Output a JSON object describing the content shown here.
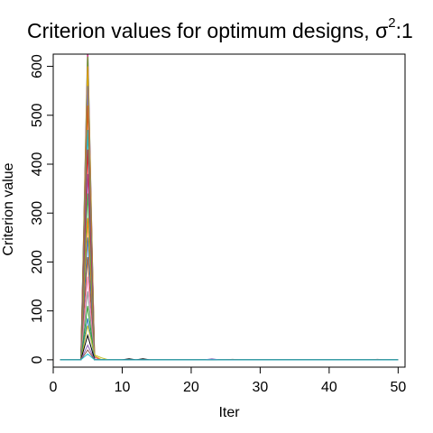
{
  "chart_data": {
    "type": "line",
    "title": "Criterion values for optimum designs, ",
    "title_sigma": "σ",
    "title_superscript": "2",
    "title_suffix": ":1",
    "xlabel": "Iter",
    "ylabel": "Criterion value",
    "xlim": [
      0,
      51
    ],
    "ylim": [
      -15,
      625
    ],
    "xticks": [
      0,
      10,
      20,
      30,
      40,
      50
    ],
    "yticks": [
      0,
      100,
      200,
      300,
      400,
      500,
      600
    ],
    "grid": false,
    "x": [
      1,
      2,
      3,
      4,
      5,
      6,
      7,
      8,
      9,
      10,
      11,
      12,
      13,
      14,
      15,
      16,
      17,
      18,
      19,
      20,
      21,
      22,
      23,
      24,
      25,
      26,
      27,
      28,
      29,
      30,
      31,
      32,
      33,
      34,
      35,
      36,
      37,
      38,
      39,
      40,
      41,
      42,
      43,
      44,
      45,
      46,
      47,
      48,
      49,
      50
    ],
    "series": [
      {
        "color": "#1b9e77",
        "values": [
          0,
          0,
          0,
          0,
          650,
          0,
          0,
          0,
          0,
          0,
          0,
          0,
          0,
          0,
          0,
          0,
          0,
          0,
          0,
          0,
          0,
          0,
          0,
          0,
          0,
          0,
          0,
          0,
          0,
          0,
          0,
          0,
          0,
          0,
          0,
          0,
          0,
          0,
          0,
          0,
          0,
          0,
          0,
          0,
          0,
          0,
          0,
          0,
          0,
          0
        ]
      },
      {
        "color": "#e7298a",
        "values": [
          0,
          0,
          0,
          0,
          640,
          5,
          0,
          0,
          0,
          0,
          0,
          0,
          0,
          0,
          0,
          0,
          0,
          0,
          0,
          0,
          0,
          0,
          0,
          0,
          0,
          0,
          0,
          0,
          0,
          0,
          0,
          0,
          0,
          0,
          0,
          0,
          0,
          0,
          0,
          0,
          0,
          0,
          0,
          0,
          0,
          0,
          0,
          0,
          0,
          0
        ]
      },
      {
        "color": "#66a61e",
        "values": [
          0,
          0,
          0,
          0,
          620,
          0,
          0,
          0,
          0,
          0,
          0,
          0,
          0,
          0,
          0,
          0,
          0,
          0,
          0,
          0,
          0,
          0,
          0,
          0,
          0,
          0,
          0,
          0,
          0,
          0,
          0,
          0,
          0,
          0,
          0,
          0,
          0,
          0,
          0,
          0,
          0,
          0,
          0,
          0,
          0,
          0,
          0,
          0,
          0,
          0
        ]
      },
      {
        "color": "#e6ab02",
        "values": [
          0,
          0,
          0,
          0,
          600,
          8,
          0,
          0,
          0,
          0,
          0,
          0,
          0,
          0,
          0,
          0,
          0,
          0,
          0,
          0,
          0,
          0,
          0,
          0,
          0,
          0,
          0,
          0,
          0,
          0,
          0,
          0,
          0,
          0,
          0,
          0,
          0,
          0,
          0,
          0,
          0,
          0,
          0,
          0,
          0,
          0,
          0,
          0,
          0,
          0
        ]
      },
      {
        "color": "#7570b3",
        "values": [
          0,
          0,
          0,
          0,
          560,
          0,
          0,
          0,
          0,
          0,
          0,
          0,
          0,
          0,
          0,
          0,
          0,
          0,
          0,
          0,
          0,
          0,
          0,
          0,
          0,
          0,
          0,
          0,
          0,
          0,
          0,
          0,
          0,
          0,
          0,
          0,
          0,
          0,
          0,
          0,
          0,
          0,
          0,
          0,
          0,
          0,
          0,
          0,
          0,
          0
        ]
      },
      {
        "color": "#d95f02",
        "values": [
          0,
          0,
          0,
          0,
          520,
          0,
          0,
          0,
          0,
          0,
          0,
          0,
          0,
          0,
          0,
          0,
          0,
          0,
          0,
          0,
          0,
          0,
          0,
          0,
          0,
          0,
          0,
          0,
          0,
          0,
          0,
          0,
          0,
          0,
          0,
          0,
          0,
          0,
          0,
          0,
          0,
          0,
          0,
          0,
          0,
          0,
          0,
          0,
          0,
          0
        ]
      },
      {
        "color": "#17becf",
        "values": [
          0,
          0,
          0,
          0,
          470,
          0,
          0,
          0,
          0,
          0,
          0,
          0,
          0,
          0,
          0,
          0,
          0,
          0,
          0,
          0,
          0,
          0,
          0,
          0,
          0,
          0,
          0,
          0,
          0,
          0,
          0,
          0,
          0,
          0,
          0,
          0,
          0,
          0,
          0,
          0,
          0,
          0,
          0,
          0,
          0,
          0,
          0,
          0,
          0,
          0
        ]
      },
      {
        "color": "#e41a1c",
        "values": [
          0,
          0,
          0,
          0,
          430,
          0,
          0,
          0,
          0,
          0,
          0,
          0,
          0,
          0,
          0,
          0,
          0,
          0,
          0,
          0,
          0,
          0,
          0,
          0,
          0,
          0,
          0,
          0,
          0,
          0,
          0,
          0,
          0,
          0,
          0,
          0,
          0,
          0,
          0,
          0,
          0,
          0,
          0,
          0,
          0,
          0,
          0,
          0,
          0,
          0
        ]
      },
      {
        "color": "#984ea3",
        "values": [
          0,
          0,
          0,
          0,
          380,
          0,
          0,
          0,
          0,
          0,
          0,
          0,
          0,
          0,
          0,
          0,
          0,
          0,
          0,
          0,
          0,
          0,
          0,
          0,
          0,
          0,
          0,
          0,
          0,
          0,
          0,
          0,
          0,
          0,
          0,
          0,
          0,
          0,
          0,
          0,
          0,
          0,
          0,
          0,
          0,
          0,
          0,
          0,
          0,
          0
        ]
      },
      {
        "color": "#4daf4a",
        "values": [
          0,
          0,
          0,
          0,
          340,
          0,
          0,
          0,
          0,
          0,
          0,
          0,
          0,
          0,
          0,
          0,
          0,
          0,
          0,
          0,
          0,
          0,
          0,
          0,
          0,
          0,
          0,
          0,
          0,
          0,
          0,
          0,
          0,
          0,
          0,
          0,
          0,
          0,
          0,
          0,
          0,
          0,
          0,
          0,
          0,
          0,
          0,
          0,
          0,
          0
        ]
      },
      {
        "color": "#ff7f00",
        "values": [
          0,
          0,
          0,
          0,
          290,
          0,
          0,
          0,
          0,
          0,
          0,
          0,
          0,
          0,
          0,
          0,
          0,
          0,
          0,
          0,
          0,
          0,
          0,
          0,
          0,
          0,
          0,
          0,
          0,
          0,
          0,
          0,
          0,
          0,
          0,
          0,
          0,
          0,
          0,
          0,
          0,
          0,
          0,
          0,
          0,
          0,
          0,
          0,
          0,
          0
        ]
      },
      {
        "color": "#377eb8",
        "values": [
          0,
          0,
          0,
          0,
          250,
          0,
          0,
          0,
          0,
          0,
          0,
          0,
          0,
          0,
          0,
          0,
          0,
          0,
          0,
          0,
          0,
          0,
          0,
          0,
          0,
          0,
          0,
          0,
          0,
          0,
          0,
          0,
          0,
          0,
          0,
          0,
          0,
          0,
          0,
          0,
          0,
          0,
          0,
          0,
          0,
          0,
          0,
          0,
          0,
          0
        ]
      },
      {
        "color": "#a65628",
        "values": [
          0,
          0,
          0,
          0,
          210,
          0,
          0,
          0,
          0,
          0,
          0,
          0,
          0,
          0,
          0,
          0,
          0,
          0,
          0,
          0,
          0,
          0,
          0,
          0,
          0,
          0,
          0,
          0,
          0,
          0,
          0,
          0,
          0,
          0,
          0,
          0,
          0,
          0,
          0,
          0,
          0,
          0,
          0,
          0,
          0,
          0,
          0,
          0,
          0,
          0
        ]
      },
      {
        "color": "#f781bf",
        "values": [
          0,
          0,
          0,
          0,
          170,
          0,
          0,
          0,
          0,
          0,
          0,
          0,
          0,
          0,
          0,
          0,
          0,
          0,
          0,
          0,
          0,
          0,
          0,
          0,
          0,
          0,
          0,
          0,
          0,
          0,
          0,
          0,
          0,
          0,
          0,
          0,
          0,
          0,
          0,
          0,
          0,
          0,
          0,
          0,
          0,
          0,
          0,
          0,
          0,
          0
        ]
      },
      {
        "color": "#999999",
        "values": [
          0,
          0,
          0,
          0,
          140,
          0,
          0,
          0,
          0,
          0,
          0,
          0,
          0,
          0,
          0,
          0,
          0,
          0,
          0,
          0,
          0,
          0,
          0,
          0,
          0,
          0,
          0,
          0,
          0,
          0,
          0,
          0,
          0,
          0,
          0,
          0,
          0,
          0,
          0,
          0,
          0,
          0,
          0,
          0,
          0,
          0,
          0,
          0,
          0,
          0
        ]
      },
      {
        "color": "#2ca02c",
        "values": [
          0,
          0,
          0,
          0,
          110,
          0,
          0,
          0,
          0,
          0,
          0,
          0,
          0,
          0,
          0,
          0,
          0,
          0,
          0,
          0,
          0,
          0,
          0,
          0,
          0,
          0,
          0,
          0,
          0,
          0,
          0,
          0,
          0,
          0,
          0,
          0,
          0,
          0,
          0,
          0,
          0,
          0,
          0,
          0,
          0,
          0,
          0,
          0,
          0,
          0
        ]
      },
      {
        "color": "#1f77b4",
        "values": [
          0,
          0,
          0,
          0,
          85,
          0,
          0,
          0,
          0,
          0,
          0,
          0,
          0,
          0,
          0,
          0,
          0,
          0,
          0,
          0,
          0,
          0,
          0,
          0,
          0,
          0,
          0,
          0,
          0,
          0,
          0,
          0,
          0,
          0,
          0,
          0,
          0,
          0,
          0,
          0,
          0,
          0,
          0,
          0,
          0,
          0,
          0,
          0,
          0,
          0
        ]
      },
      {
        "color": "#bcbd22",
        "values": [
          0,
          0,
          0,
          0,
          70,
          10,
          4,
          0,
          0,
          0,
          0,
          0,
          0,
          0,
          0,
          0,
          0,
          0,
          0,
          0,
          0,
          0,
          0,
          0,
          0,
          0,
          0,
          0,
          0,
          0,
          0,
          0,
          0,
          0,
          0,
          0,
          0,
          0,
          0,
          0,
          0,
          0,
          0,
          0,
          0,
          0,
          0,
          0,
          0,
          0
        ]
      },
      {
        "color": "#000000",
        "values": [
          0,
          0,
          0,
          0,
          50,
          0,
          0,
          0,
          0,
          0,
          2,
          0,
          2,
          0,
          0,
          0,
          0,
          0,
          0,
          0,
          0,
          0,
          0,
          0,
          0,
          0,
          0,
          0,
          0,
          0,
          0,
          0,
          0,
          0,
          0,
          0,
          0,
          0,
          0,
          0,
          0,
          0,
          0,
          0,
          0,
          0,
          0,
          0,
          0,
          0
        ]
      },
      {
        "color": "#9467bd",
        "values": [
          0,
          0,
          0,
          0,
          30,
          0,
          0,
          0,
          0,
          0,
          0,
          0,
          0,
          0,
          0,
          0,
          0,
          0,
          0,
          0,
          0,
          0,
          2,
          0,
          0,
          0,
          0,
          0,
          0,
          0,
          0,
          0,
          0,
          0,
          0,
          0,
          0,
          0,
          0,
          0,
          0,
          0,
          0,
          0,
          0,
          0,
          0,
          0,
          0,
          0
        ]
      },
      {
        "color": "#8c564b",
        "values": [
          0,
          0,
          0,
          0,
          20,
          0,
          0,
          0,
          0,
          0,
          0,
          0,
          0,
          0,
          0,
          0,
          0,
          0,
          0,
          0,
          0,
          0,
          0,
          0,
          0,
          1,
          0,
          0,
          0,
          0,
          0,
          0,
          0,
          0,
          0,
          0,
          0,
          0,
          0,
          0,
          0,
          0,
          0,
          0,
          0,
          0,
          1,
          0,
          0,
          0
        ]
      },
      {
        "color": "#17becf",
        "values": [
          0,
          0,
          0,
          0,
          12,
          0,
          0,
          0,
          0,
          0,
          0,
          0,
          0,
          0,
          0,
          0,
          0,
          0,
          0,
          0,
          0,
          0,
          0,
          0,
          0,
          0,
          0,
          0,
          0,
          0,
          0,
          0,
          0,
          0,
          0,
          0,
          0,
          0,
          0,
          0,
          0,
          0,
          0,
          0,
          0,
          0,
          0,
          0,
          0,
          0
        ]
      }
    ]
  }
}
